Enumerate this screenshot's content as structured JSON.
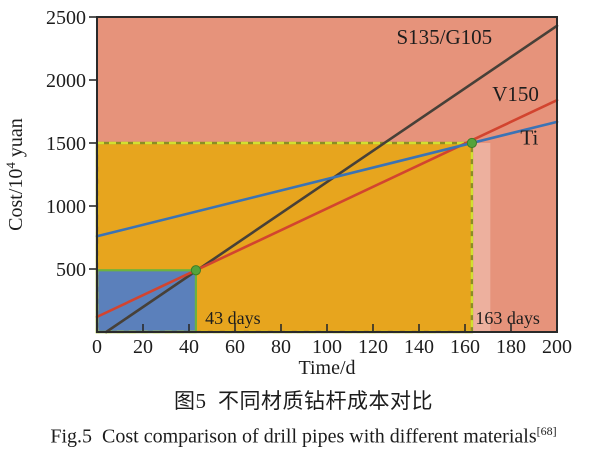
{
  "figure": {
    "caption_cn": "图5  不同材质钻杆成本对比",
    "caption_en": {
      "text": "Fig.5  Cost comparison of drill pipes with different materials",
      "ref": "[68]"
    }
  },
  "chart_data": {
    "type": "line",
    "title": "",
    "xlabel": "Time/d",
    "ylabel": {
      "prefix": "Cost/10",
      "sup": "4",
      "suffix": " yuan"
    },
    "xlim": [
      0,
      200
    ],
    "ylim": [
      0,
      2500
    ],
    "xticks": [
      0,
      20,
      40,
      60,
      80,
      100,
      120,
      140,
      160,
      180,
      200
    ],
    "yticks": [
      500,
      1000,
      1500,
      2000,
      2500
    ],
    "grid": false,
    "legend_position": "inline-labels",
    "plot_bg": "#e6937b",
    "axis_color": "#2a2a2a",
    "series": [
      {
        "name": "S135/G105",
        "color": "#474038",
        "points": [
          [
            4,
            0
          ],
          [
            200,
            2430
          ]
        ],
        "label_at": [
          151,
          2340
        ]
      },
      {
        "name": "V150",
        "color": "#d2442f",
        "points": [
          [
            0,
            120
          ],
          [
            200,
            1840
          ]
        ],
        "label_at": [
          182,
          1890
        ]
      },
      {
        "name": "Ti",
        "color": "#3b73b5",
        "points": [
          [
            0,
            760
          ],
          [
            200,
            1668
          ]
        ],
        "label_at": [
          188,
          1545
        ]
      }
    ],
    "regions": [
      {
        "name": "below-1500-before-163d",
        "x": [
          0,
          163
        ],
        "y": [
          0,
          1500
        ],
        "fill": "#e7a51e",
        "border": "#d2e030",
        "border_style": "dashed"
      },
      {
        "name": "below-490-before-43d",
        "x": [
          0,
          43
        ],
        "y": [
          0,
          490
        ],
        "fill": "#5b80bb",
        "border": "#6db23e",
        "border_style": "solid"
      },
      {
        "name": "highlight-strip-after-163d",
        "x": [
          163.5,
          171
        ],
        "y": [
          0,
          1500
        ],
        "fill": "rgba(255,255,255,0.27)"
      }
    ],
    "markers": [
      {
        "x": 43,
        "y": 490,
        "color": "#54a33b"
      },
      {
        "x": 163,
        "y": 1500,
        "color": "#54a33b"
      }
    ],
    "annotations": [
      {
        "text": "43 days",
        "x": 47,
        "y": 110,
        "color": "#c9402f"
      },
      {
        "text": "163 days",
        "x": 164.5,
        "y": 110,
        "color": "#c9402f"
      }
    ]
  }
}
